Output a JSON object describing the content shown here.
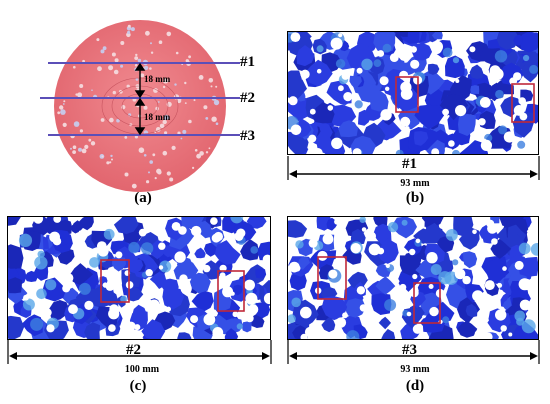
{
  "panel_a": {
    "caption": "(a)",
    "line_labels": [
      "#1",
      "#2",
      "#3"
    ],
    "spacing_labels": [
      "18 mm",
      "18 mm"
    ]
  },
  "panel_b": {
    "caption": "(b)",
    "section_label": "#1",
    "width_label": "93 mm"
  },
  "panel_c": {
    "caption": "(c)",
    "section_label": "#2",
    "width_label": "100 mm"
  },
  "panel_d": {
    "caption": "(d)",
    "section_label": "#3",
    "width_label": "93 mm"
  },
  "colors": {
    "disk": "#e9747c",
    "line": "#5b4fb8",
    "particle": "#2330d8",
    "box": "#c0283a"
  }
}
